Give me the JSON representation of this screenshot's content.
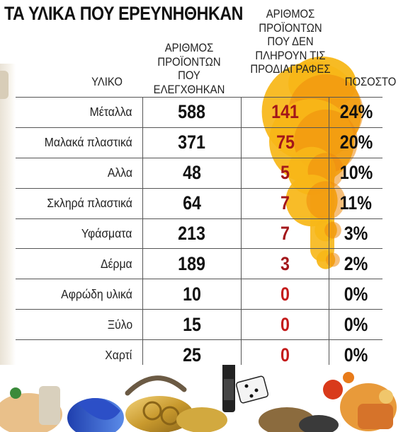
{
  "title": "ΤΑ ΥΛΙΚΑ ΠΟΥ ΕΡΕΥΝΗΘΗΚΑΝ",
  "headers": {
    "material": "ΥΛΙΚΟ",
    "checked": "ΑΡΙΘΜΟΣ\nΠΡΟΪΟΝΤΩΝ\nΠΟΥ ΕΛΕΓΧΘΗΚΑΝ",
    "failed": "ΑΡΙΘΜΟΣ\nΠΡΟΪΟΝΤΩΝ\nΠΟΥ ΔΕΝ\nΠΛΗΡΟΥΝ ΤΙΣ\nΠΡΟΔΙΑΓΡΑΦΕΣ",
    "percent": "ΠΟΣΟΣΤΟ"
  },
  "colors": {
    "blob": "#f7b718",
    "blob_dark": "#ef8a0c",
    "failed_text": "#a3161a",
    "zero_text": "#c41a1a"
  },
  "chart_data": {
    "type": "table",
    "columns": [
      "ΥΛΙΚΟ",
      "ΑΡΙΘΜΟΣ ΠΡΟΪΟΝΤΩΝ ΠΟΥ ΕΛΕΓΧΘΗΚΑΝ",
      "ΑΡΙΘΜΟΣ ΠΡΟΪΟΝΤΩΝ ΠΟΥ ΔΕΝ ΠΛΗΡΟΥΝ ΤΙΣ ΠΡΟΔΙΑΓΡΑΦΕΣ",
      "ΠΟΣΟΣΤΟ"
    ],
    "rows": [
      {
        "material": "Μέταλλα",
        "checked": "588",
        "failed": "141",
        "percent": "24%"
      },
      {
        "material": "Μαλακά πλαστικά",
        "checked": "371",
        "failed": "75",
        "percent": "20%"
      },
      {
        "material": "Αλλα",
        "checked": "48",
        "failed": "5",
        "percent": "10%"
      },
      {
        "material": "Σκληρά πλαστικά",
        "checked": "64",
        "failed": "7",
        "percent": "11%"
      },
      {
        "material": "Υφάσματα",
        "checked": "213",
        "failed": "7",
        "percent": "3%"
      },
      {
        "material": "Δέρμα",
        "checked": "189",
        "failed": "3",
        "percent": "2%"
      },
      {
        "material": "Αφρώδη υλικά",
        "checked": "10",
        "failed": "0",
        "percent": "0%"
      },
      {
        "material": "Ξύλο",
        "checked": "15",
        "failed": "0",
        "percent": "0%"
      },
      {
        "material": "Χαρτί",
        "checked": "25",
        "failed": "0",
        "percent": "0%"
      }
    ],
    "percent_values": [
      24,
      20,
      10,
      11,
      3,
      2,
      0,
      0,
      0
    ]
  }
}
